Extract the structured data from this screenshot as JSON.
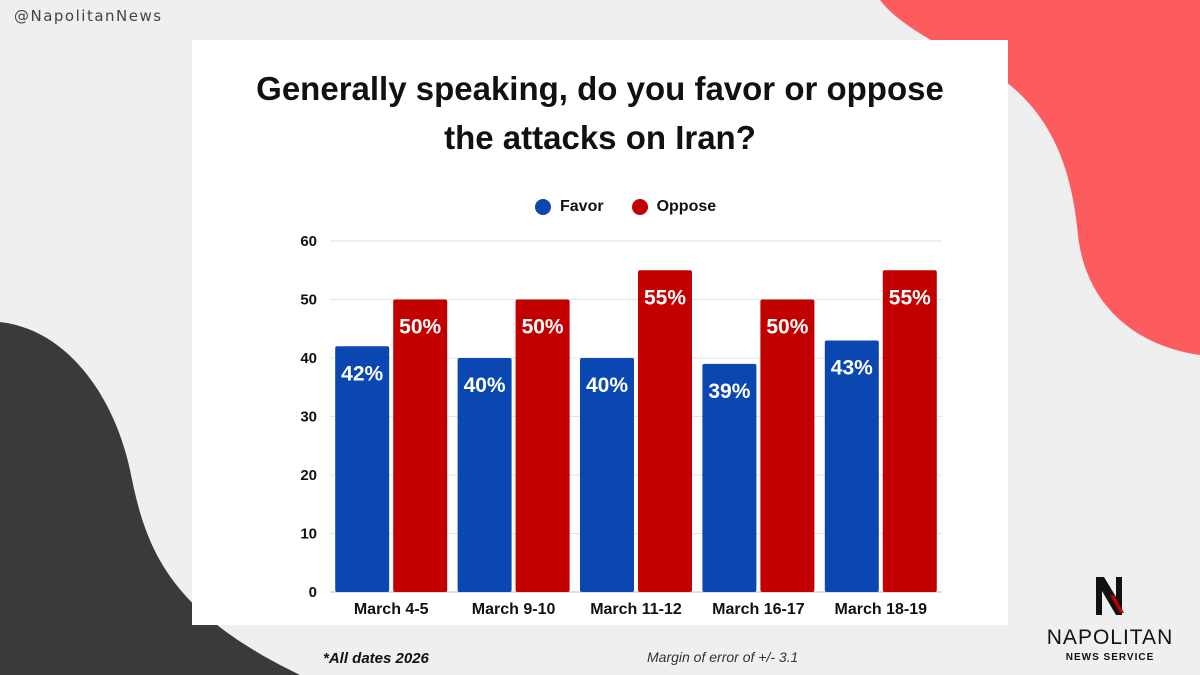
{
  "handle": "@NapolitanNews",
  "colors": {
    "favor": "#0a47b0",
    "oppose": "#c30000",
    "coral": "#fd5c5f",
    "dark": "#3a3a3a"
  },
  "chart_data": {
    "type": "bar",
    "title_line1": "Generally speaking, do you favor or oppose",
    "title_line2": "the attacks on Iran?",
    "categories": [
      "March 4-5",
      "March 9-10",
      "March 11-12",
      "March 16-17",
      "March 18-19"
    ],
    "series": [
      {
        "name": "Favor",
        "values": [
          42,
          40,
          40,
          39,
          43
        ],
        "labels": [
          "42%",
          "40%",
          "40%",
          "39%",
          "43%"
        ]
      },
      {
        "name": "Oppose",
        "values": [
          50,
          50,
          55,
          50,
          55
        ],
        "labels": [
          "50%",
          "50%",
          "55%",
          "50%",
          "55%"
        ]
      }
    ],
    "yticks": [
      0,
      10,
      20,
      30,
      40,
      50,
      60
    ],
    "ylim": [
      0,
      60
    ],
    "xlabel": "",
    "ylabel": "",
    "legend_position": "top-center"
  },
  "footnote": "*All dates 2026",
  "margin_note": "Margin of error of +/- 3.1",
  "logo": {
    "mark": "N",
    "name": "NAPOLITAN",
    "sub": "NEWS SERVICE"
  }
}
